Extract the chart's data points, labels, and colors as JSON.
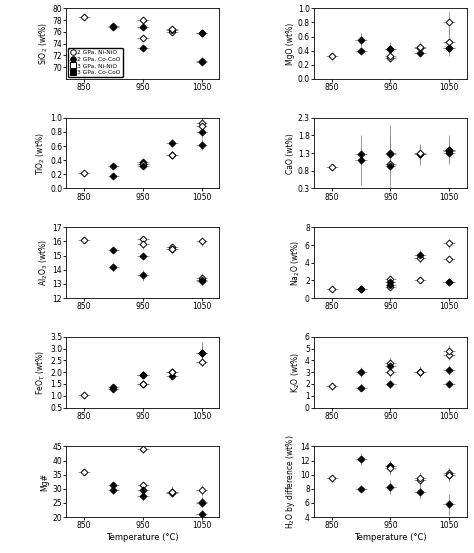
{
  "panels": [
    {
      "ylabel": "SiO$_2$ (wt%)",
      "ylim": [
        68,
        80
      ],
      "yticks": [
        70,
        72,
        74,
        76,
        78,
        80
      ],
      "data": {
        "2GPa_NiNiO": {
          "x": [
            850,
            950,
            1000,
            1050
          ],
          "y": [
            78.5,
            78.0,
            76.0,
            71.0
          ],
          "xerr": [
            10,
            10,
            10,
            10
          ],
          "yerr": [
            0.3,
            0.5,
            0.4,
            0.5
          ]
        },
        "2GPa_CoCoO": {
          "x": [
            900,
            950,
            1000,
            1050
          ],
          "y": [
            76.8,
            76.8,
            76.3,
            70.8
          ],
          "xerr": [
            10,
            10,
            10,
            10
          ],
          "yerr": [
            0.3,
            0.4,
            0.3,
            0.4
          ]
        },
        "3GPa_NiNiO": {
          "x": [
            950,
            1000,
            1050
          ],
          "y": [
            75.0,
            76.5,
            75.8
          ],
          "xerr": [
            10,
            10,
            10
          ],
          "yerr": [
            0.4,
            0.4,
            0.5
          ]
        },
        "3GPa_CoCoO": {
          "x": [
            900,
            950,
            1050
          ],
          "y": [
            77.0,
            73.2,
            75.8
          ],
          "xerr": [
            10,
            10,
            10
          ],
          "yerr": [
            0.4,
            0.5,
            0.3
          ]
        }
      },
      "legend": true
    },
    {
      "ylabel": "MgO (wt%)",
      "ylim": [
        0.0,
        1.0
      ],
      "yticks": [
        0.0,
        0.2,
        0.4,
        0.6,
        0.8,
        1.0
      ],
      "data": {
        "2GPa_NiNiO": {
          "x": [
            850,
            950,
            1000,
            1050
          ],
          "y": [
            0.32,
            0.3,
            0.44,
            0.8
          ],
          "xerr": [
            10,
            10,
            10,
            10
          ],
          "yerr": [
            0.05,
            0.05,
            0.05,
            0.15
          ]
        },
        "2GPa_CoCoO": {
          "x": [
            900,
            950,
            1000,
            1050
          ],
          "y": [
            0.4,
            0.43,
            0.37,
            0.44
          ],
          "xerr": [
            10,
            10,
            10,
            10
          ],
          "yerr": [
            0.05,
            0.05,
            0.05,
            0.05
          ]
        },
        "3GPa_NiNiO": {
          "x": [
            950,
            1000,
            1050
          ],
          "y": [
            0.32,
            0.45,
            0.52
          ],
          "xerr": [
            10,
            10,
            10
          ],
          "yerr": [
            0.08,
            0.08,
            0.2
          ]
        },
        "3GPa_CoCoO": {
          "x": [
            900,
            950,
            1050
          ],
          "y": [
            0.55,
            0.42,
            0.44
          ],
          "xerr": [
            10,
            10,
            10
          ],
          "yerr": [
            0.1,
            0.1,
            0.05
          ]
        }
      },
      "legend": false
    },
    {
      "ylabel": "TiO$_2$ (wt%)",
      "ylim": [
        0.0,
        1.0
      ],
      "yticks": [
        0.0,
        0.2,
        0.4,
        0.6,
        0.8,
        1.0
      ],
      "data": {
        "2GPa_NiNiO": {
          "x": [
            850,
            950,
            1000,
            1050
          ],
          "y": [
            0.22,
            0.35,
            0.47,
            0.92
          ],
          "xerr": [
            10,
            10,
            10,
            10
          ],
          "yerr": [
            0.03,
            0.04,
            0.05,
            0.1
          ]
        },
        "2GPa_CoCoO": {
          "x": [
            900,
            950,
            1000,
            1050
          ],
          "y": [
            0.32,
            0.38,
            0.65,
            0.8
          ],
          "xerr": [
            10,
            10,
            10,
            10
          ],
          "yerr": [
            0.04,
            0.04,
            0.05,
            0.08
          ]
        },
        "3GPa_NiNiO": {
          "x": [
            950,
            1000,
            1050
          ],
          "y": [
            0.35,
            0.48,
            0.88
          ],
          "xerr": [
            10,
            10,
            10
          ],
          "yerr": [
            0.05,
            0.05,
            0.12
          ]
        },
        "3GPa_CoCoO": {
          "x": [
            900,
            950,
            1050
          ],
          "y": [
            0.18,
            0.32,
            0.62
          ],
          "xerr": [
            10,
            10,
            10
          ],
          "yerr": [
            0.03,
            0.04,
            0.08
          ]
        }
      },
      "legend": false
    },
    {
      "ylabel": "CaO (wt%)",
      "ylim": [
        0.3,
        2.3
      ],
      "yticks": [
        0.3,
        0.8,
        1.3,
        1.8,
        2.3
      ],
      "data": {
        "2GPa_NiNiO": {
          "x": [
            850,
            950,
            1000,
            1050
          ],
          "y": [
            0.9,
            1.0,
            1.27,
            1.38
          ],
          "xerr": [
            10,
            10,
            10,
            10
          ],
          "yerr": [
            0.1,
            1.1,
            0.3,
            0.3
          ]
        },
        "2GPa_CoCoO": {
          "x": [
            900,
            950,
            1000,
            1050
          ],
          "y": [
            1.28,
            0.95,
            1.28,
            1.3
          ],
          "xerr": [
            10,
            10,
            10,
            10
          ],
          "yerr": [
            0.15,
            0.15,
            0.2,
            0.15
          ]
        },
        "3GPa_NiNiO": {
          "x": [
            950,
            1000,
            1050
          ],
          "y": [
            1.3,
            1.3,
            1.4
          ],
          "xerr": [
            10,
            10,
            10
          ],
          "yerr": [
            0.35,
            0.2,
            0.4
          ]
        },
        "3GPa_CoCoO": {
          "x": [
            900,
            950,
            1050
          ],
          "y": [
            1.1,
            1.28,
            1.35
          ],
          "xerr": [
            10,
            10,
            10
          ],
          "yerr": [
            0.7,
            0.5,
            0.12
          ]
        }
      },
      "legend": false
    },
    {
      "ylabel": "Al$_2$O$_3$ (wt%)",
      "ylim": [
        12,
        17
      ],
      "yticks": [
        12,
        13,
        14,
        15,
        16,
        17
      ],
      "data": {
        "2GPa_NiNiO": {
          "x": [
            850,
            950,
            1000,
            1050
          ],
          "y": [
            16.1,
            16.2,
            15.6,
            16.0
          ],
          "xerr": [
            10,
            10,
            10,
            10
          ],
          "yerr": [
            0.2,
            0.2,
            0.2,
            0.3
          ]
        },
        "2GPa_CoCoO": {
          "x": [
            900,
            950,
            1000,
            1050
          ],
          "y": [
            15.4,
            15.0,
            15.5,
            13.2
          ],
          "xerr": [
            10,
            10,
            10,
            10
          ],
          "yerr": [
            0.2,
            0.2,
            0.2,
            0.3
          ]
        },
        "3GPa_NiNiO": {
          "x": [
            950,
            1000,
            1050
          ],
          "y": [
            15.8,
            15.5,
            13.4
          ],
          "xerr": [
            10,
            10,
            10
          ],
          "yerr": [
            0.3,
            0.3,
            0.4
          ]
        },
        "3GPa_CoCoO": {
          "x": [
            900,
            950,
            1050
          ],
          "y": [
            14.2,
            13.6,
            13.3
          ],
          "xerr": [
            10,
            10,
            10
          ],
          "yerr": [
            0.3,
            0.4,
            0.3
          ]
        }
      },
      "legend": false
    },
    {
      "ylabel": "Na$_2$O (wt%)",
      "ylim": [
        0,
        8
      ],
      "yticks": [
        0,
        2,
        4,
        6,
        8
      ],
      "data": {
        "2GPa_NiNiO": {
          "x": [
            850,
            950,
            1000,
            1050
          ],
          "y": [
            1.0,
            1.2,
            4.5,
            4.4
          ],
          "xerr": [
            10,
            10,
            10,
            10
          ],
          "yerr": [
            0.2,
            0.2,
            0.5,
            0.3
          ]
        },
        "2GPa_CoCoO": {
          "x": [
            900,
            950,
            1000,
            1050
          ],
          "y": [
            1.0,
            1.5,
            4.9,
            1.8
          ],
          "xerr": [
            10,
            10,
            10,
            10
          ],
          "yerr": [
            0.2,
            0.2,
            0.5,
            0.3
          ]
        },
        "3GPa_NiNiO": {
          "x": [
            950,
            1000,
            1050
          ],
          "y": [
            2.2,
            2.0,
            6.2
          ],
          "xerr": [
            10,
            10,
            10
          ],
          "yerr": [
            0.3,
            0.3,
            0.5
          ]
        },
        "3GPa_CoCoO": {
          "x": [
            900,
            950,
            1050
          ],
          "y": [
            1.0,
            1.8,
            1.8
          ],
          "xerr": [
            10,
            10,
            10
          ],
          "yerr": [
            0.2,
            0.3,
            0.3
          ]
        }
      },
      "legend": false
    },
    {
      "ylabel": "FeO$_T$ (wt%)",
      "ylim": [
        0.5,
        3.5
      ],
      "yticks": [
        0.5,
        1.0,
        1.5,
        2.0,
        2.5,
        3.0,
        3.5
      ],
      "data": {
        "2GPa_NiNiO": {
          "x": [
            850,
            950,
            1000,
            1050
          ],
          "y": [
            1.02,
            1.48,
            2.0,
            2.45
          ],
          "xerr": [
            10,
            10,
            10,
            10
          ],
          "yerr": [
            0.08,
            0.1,
            0.15,
            0.2
          ]
        },
        "2GPa_CoCoO": {
          "x": [
            900,
            950,
            1000,
            1050
          ],
          "y": [
            1.38,
            1.9,
            1.85,
            2.8
          ],
          "xerr": [
            10,
            10,
            10,
            10
          ],
          "yerr": [
            0.1,
            0.12,
            0.15,
            0.3
          ]
        },
        "3GPa_NiNiO": {
          "x": [
            950,
            1000,
            1050
          ],
          "y": [
            1.52,
            2.0,
            2.8
          ],
          "xerr": [
            10,
            10,
            10
          ],
          "yerr": [
            0.12,
            0.15,
            0.5
          ]
        },
        "3GPa_CoCoO": {
          "x": [
            900,
            950,
            1050
          ],
          "y": [
            1.3,
            1.9,
            2.8
          ],
          "xerr": [
            10,
            10,
            10
          ],
          "yerr": [
            0.1,
            0.15,
            0.3
          ]
        }
      },
      "legend": false
    },
    {
      "ylabel": "K$_2$O (wt%)",
      "ylim": [
        0,
        6
      ],
      "yticks": [
        0,
        1,
        2,
        3,
        4,
        5,
        6
      ],
      "data": {
        "2GPa_NiNiO": {
          "x": [
            850,
            950,
            1000,
            1050
          ],
          "y": [
            1.8,
            3.0,
            3.0,
            4.5
          ],
          "xerr": [
            10,
            10,
            10,
            10
          ],
          "yerr": [
            0.3,
            0.4,
            0.4,
            0.5
          ]
        },
        "2GPa_CoCoO": {
          "x": [
            900,
            950,
            1000,
            1050
          ],
          "y": [
            1.7,
            2.0,
            3.0,
            2.0
          ],
          "xerr": [
            10,
            10,
            10,
            10
          ],
          "yerr": [
            0.3,
            0.3,
            0.4,
            0.3
          ]
        },
        "3GPa_NiNiO": {
          "x": [
            950,
            1000,
            1050
          ],
          "y": [
            3.8,
            3.0,
            4.8
          ],
          "xerr": [
            10,
            10,
            10
          ],
          "yerr": [
            0.5,
            0.4,
            0.5
          ]
        },
        "3GPa_CoCoO": {
          "x": [
            900,
            950,
            1050
          ],
          "y": [
            3.0,
            3.5,
            3.2
          ],
          "xerr": [
            10,
            10,
            10
          ],
          "yerr": [
            0.4,
            0.5,
            0.4
          ]
        }
      },
      "legend": false
    },
    {
      "ylabel": "Mg#",
      "ylim": [
        20,
        45
      ],
      "yticks": [
        20,
        25,
        30,
        35,
        40,
        45
      ],
      "data": {
        "2GPa_NiNiO": {
          "x": [
            850,
            950,
            1000,
            1050
          ],
          "y": [
            36.0,
            31.5,
            29.0,
            25.5
          ],
          "xerr": [
            10,
            10,
            10,
            10
          ],
          "yerr": [
            1.0,
            1.0,
            1.5,
            1.5
          ]
        },
        "2GPa_CoCoO": {
          "x": [
            900,
            950,
            1000,
            1050
          ],
          "y": [
            31.5,
            29.5,
            28.5,
            21.0
          ],
          "xerr": [
            10,
            10,
            10,
            10
          ],
          "yerr": [
            1.0,
            1.0,
            1.0,
            1.5
          ]
        },
        "3GPa_NiNiO": {
          "x": [
            950,
            1000,
            1050
          ],
          "y": [
            44.0,
            29.0,
            29.5
          ],
          "xerr": [
            10,
            10,
            10
          ],
          "yerr": [
            1.5,
            2.0,
            2.0
          ]
        },
        "3GPa_CoCoO": {
          "x": [
            900,
            950,
            1050
          ],
          "y": [
            29.5,
            27.5,
            25.0
          ],
          "xerr": [
            10,
            10,
            10
          ],
          "yerr": [
            1.5,
            1.5,
            1.5
          ]
        }
      },
      "legend": false
    },
    {
      "ylabel": "H$_2$O by difference (wt%)",
      "ylim": [
        4,
        14
      ],
      "yticks": [
        4,
        6,
        8,
        10,
        12,
        14
      ],
      "data": {
        "2GPa_NiNiO": {
          "x": [
            850,
            950,
            1000,
            1050
          ],
          "y": [
            9.5,
            11.2,
            9.2,
            10.2
          ],
          "xerr": [
            10,
            10,
            10,
            10
          ],
          "yerr": [
            0.5,
            0.8,
            1.0,
            0.8
          ]
        },
        "2GPa_CoCoO": {
          "x": [
            900,
            950,
            1000,
            1050
          ],
          "y": [
            8.0,
            11.2,
            7.5,
            10.0
          ],
          "xerr": [
            10,
            10,
            10,
            10
          ],
          "yerr": [
            0.5,
            0.8,
            1.0,
            0.8
          ]
        },
        "3GPa_NiNiO": {
          "x": [
            950,
            1000,
            1050
          ],
          "y": [
            10.9,
            9.5,
            10.0
          ],
          "xerr": [
            10,
            10,
            10
          ],
          "yerr": [
            1.0,
            0.8,
            1.0
          ]
        },
        "3GPa_CoCoO": {
          "x": [
            900,
            950,
            1050
          ],
          "y": [
            12.2,
            8.2,
            5.8
          ],
          "xerr": [
            10,
            10,
            10
          ],
          "yerr": [
            0.8,
            1.0,
            1.5
          ]
        }
      },
      "legend": false
    }
  ],
  "xlabel": "Temperature (°C)",
  "xlim": [
    820,
    1080
  ],
  "xticks": [
    850,
    950,
    1050
  ],
  "series_styles": {
    "2GPa_NiNiO": {
      "marker": "D",
      "facecolor": "white",
      "edgecolor": "black",
      "markersize": 3.5,
      "label": "2 GPa, Ni-NiO"
    },
    "2GPa_CoCoO": {
      "marker": "D",
      "facecolor": "black",
      "edgecolor": "black",
      "markersize": 3.5,
      "label": "2 GPa, Co-CoO"
    },
    "3GPa_NiNiO": {
      "marker": "D",
      "facecolor": "white",
      "edgecolor": "black",
      "markersize": 3.5,
      "label": "3 GPa, Ni-NiO"
    },
    "3GPa_CoCoO": {
      "marker": "D",
      "facecolor": "black",
      "edgecolor": "black",
      "markersize": 3.5,
      "label": "3 GPa, Co-CoO"
    }
  },
  "legend_markers": {
    "2GPa_NiNiO": {
      "marker": "o",
      "facecolor": "white",
      "edgecolor": "black",
      "label": "2 GPa, Ni-NiO"
    },
    "2GPa_CoCoO": {
      "marker": "o",
      "facecolor": "black",
      "edgecolor": "black",
      "label": "2 GPa, Co-CoO"
    },
    "3GPa_NiNiO": {
      "marker": "s",
      "facecolor": "white",
      "edgecolor": "black",
      "label": "3 GPa, Ni-NiO"
    },
    "3GPa_CoCoO": {
      "marker": "s",
      "facecolor": "black",
      "edgecolor": "black",
      "label": "3 GPa, Co-CoO"
    }
  }
}
